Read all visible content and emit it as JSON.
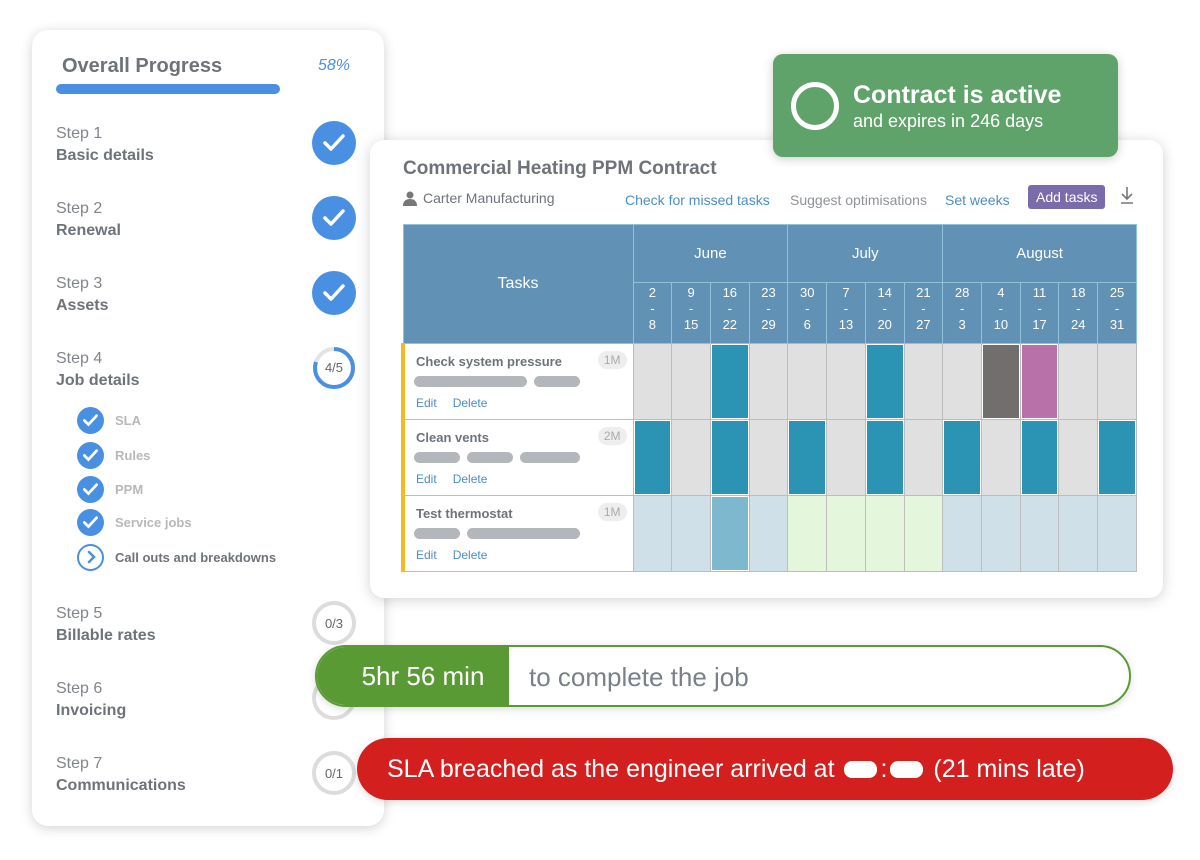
{
  "progress": {
    "title": "Overall Progress",
    "percent_label": "58%",
    "percent": 58
  },
  "steps": [
    {
      "label": "Step 1",
      "name": "Basic details",
      "status": "done"
    },
    {
      "label": "Step 2",
      "name": "Renewal",
      "status": "done"
    },
    {
      "label": "Step 3",
      "name": "Assets",
      "status": "done"
    },
    {
      "label": "Step 4",
      "name": "Job details",
      "status": "in-progress",
      "count": "4/5",
      "fraction": 0.8
    },
    {
      "label": "Step 5",
      "name": "Billable rates",
      "status": "todo",
      "count": "0/3"
    },
    {
      "label": "Step 6",
      "name": "Invoicing",
      "status": "todo"
    },
    {
      "label": "Step 7",
      "name": "Communications",
      "status": "todo",
      "count": "0/1"
    }
  ],
  "substeps": [
    {
      "label": "SLA",
      "status": "done"
    },
    {
      "label": "Rules",
      "status": "done"
    },
    {
      "label": "PPM",
      "status": "done"
    },
    {
      "label": "Service jobs",
      "status": "done"
    },
    {
      "label": "Call outs and breakdowns",
      "status": "current"
    }
  ],
  "contract": {
    "title": "Commercial Heating PPM Contract",
    "client": "Carter Manufacturing",
    "actions": {
      "check": "Check for missed tasks",
      "suggest": "Suggest optimisations",
      "weeks": "Set weeks",
      "add": "Add tasks"
    },
    "tasks_header": "Tasks",
    "months": [
      "June",
      "July",
      "August"
    ],
    "weeks": [
      [
        "2",
        "8"
      ],
      [
        "9",
        "15"
      ],
      [
        "16",
        "22"
      ],
      [
        "23",
        "29"
      ],
      [
        "30",
        "6"
      ],
      [
        "7",
        "13"
      ],
      [
        "14",
        "20"
      ],
      [
        "21",
        "27"
      ],
      [
        "28",
        "3"
      ],
      [
        "4",
        "10"
      ],
      [
        "11",
        "17"
      ],
      [
        "18",
        "24"
      ],
      [
        "25",
        "31"
      ]
    ],
    "edit_label": "Edit",
    "delete_label": "Delete",
    "rows": [
      {
        "name": "Check system pressure",
        "freq": "1M",
        "cells": [
          "g",
          "g",
          "b",
          "g",
          "g",
          "g",
          "b",
          "g",
          "g",
          "d",
          "p",
          "g",
          "g"
        ]
      },
      {
        "name": "Clean vents",
        "freq": "2M",
        "cells": [
          "b",
          "g",
          "b",
          "g",
          "b",
          "g",
          "b",
          "g",
          "b",
          "g",
          "b",
          "g",
          "b"
        ]
      },
      {
        "name": "Test thermostat",
        "freq": "1M",
        "cells": [
          "l",
          "l",
          "m",
          "l",
          "n",
          "n",
          "n",
          "n",
          "l",
          "l",
          "l",
          "l",
          "l"
        ]
      }
    ],
    "cell_colors": {
      "g": "#e0e0e0",
      "b": "#2b93b4",
      "d": "#726e6e",
      "p": "#b872a9",
      "l": "#cfe0e8",
      "m": "#7db8cf",
      "n": "#e4f7dd"
    }
  },
  "status_badge": {
    "title": "Contract is active",
    "subtitle": "and expires in 246 days",
    "color": "#5fa36a"
  },
  "time_pill": {
    "value": "5hr 56 min",
    "text": "to complete the job"
  },
  "sla_pill": {
    "before": "SLA breached as the engineer arrived at",
    "sep": ":",
    "after": "(21 mins late)"
  }
}
